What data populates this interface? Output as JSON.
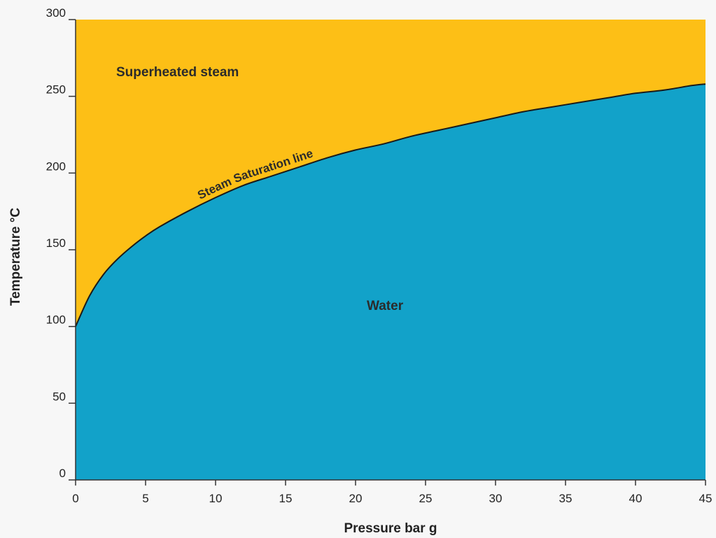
{
  "chart_data": {
    "type": "area",
    "xlabel": "Pressure bar g",
    "ylabel": "Temperature °C",
    "xlim": [
      0,
      45
    ],
    "ylim": [
      0,
      300
    ],
    "x_ticks": [
      "0",
      "5",
      "10",
      "15",
      "20",
      "25",
      "30",
      "35",
      "40",
      "45"
    ],
    "y_ticks": [
      "0",
      "50",
      "100",
      "150",
      "200",
      "250",
      "300"
    ],
    "grid": false,
    "series": [
      {
        "name": "Steam Saturation line",
        "x": [
          0,
          1,
          2,
          3,
          4,
          5,
          6,
          8,
          10,
          12,
          14,
          16,
          18,
          20,
          22,
          24,
          26,
          28,
          30,
          32,
          34,
          36,
          38,
          40,
          42,
          44,
          45
        ],
        "y": [
          100,
          120,
          134,
          144,
          152,
          159,
          165,
          175,
          184,
          192,
          198,
          204,
          210,
          215,
          219,
          224,
          228,
          232,
          236,
          240,
          243,
          246,
          249,
          252,
          254,
          257,
          258
        ]
      }
    ],
    "regions": [
      {
        "label": "Superheated steam",
        "color": "#fdbf16",
        "side": "above"
      },
      {
        "label": "Water",
        "color": "#12a2c9",
        "side": "below"
      }
    ],
    "colors": {
      "steam": "#fdbf16",
      "water": "#12a2c9",
      "line": "#1a1a1a",
      "axis": "#333333"
    }
  }
}
